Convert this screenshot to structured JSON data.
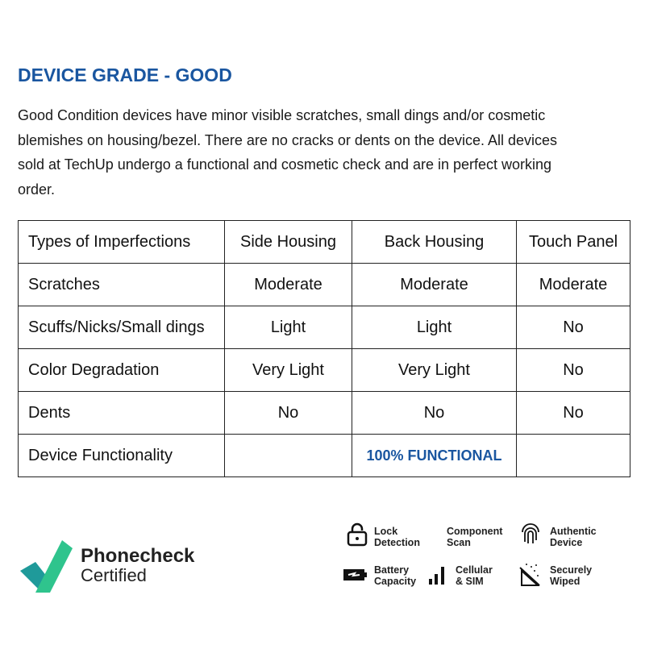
{
  "heading": "DEVICE GRADE - GOOD",
  "description": "Good Condition devices have minor visible scratches, small dings and/or cosmetic blemishes on housing/bezel. There are no cracks or dents on the device. All devices sold at TechUp undergo a functional and cosmetic check and are in perfect working order.",
  "table": {
    "headers": [
      "Types of Imperfections",
      "Side Housing",
      "Back Housing",
      "Touch Panel"
    ],
    "rows": [
      [
        "Scratches",
        "Moderate",
        "Moderate",
        "Moderate"
      ],
      [
        "Scuffs/Nicks/Small dings",
        "Light",
        "Light",
        "No"
      ],
      [
        "Color Degradation",
        "Very Light",
        "Very Light",
        "No"
      ],
      [
        "Dents",
        "No",
        "No",
        "No"
      ]
    ],
    "functionality": {
      "label": "Device Functionality",
      "value": "100% FUNCTIONAL"
    }
  },
  "logo": {
    "name": "Phonecheck",
    "sub": "Certified"
  },
  "features": [
    {
      "icon": "lock-icon",
      "l1": "Lock",
      "l2": "Detection"
    },
    {
      "icon": "",
      "l1": "Component",
      "l2": "Scan"
    },
    {
      "icon": "fingerprint-icon",
      "l1": "Authentic",
      "l2": "Device"
    },
    {
      "icon": "battery-icon",
      "l1": "Battery",
      "l2": "Capacity"
    },
    {
      "icon": "signal-icon",
      "l1": "Cellular",
      "l2": "& SIM"
    },
    {
      "icon": "wipe-icon",
      "l1": "Securely",
      "l2": "Wiped"
    }
  ],
  "colors": {
    "accent": "#1a56a0",
    "logo_green": "#2fc48d",
    "logo_teal": "#1f9a9a"
  }
}
